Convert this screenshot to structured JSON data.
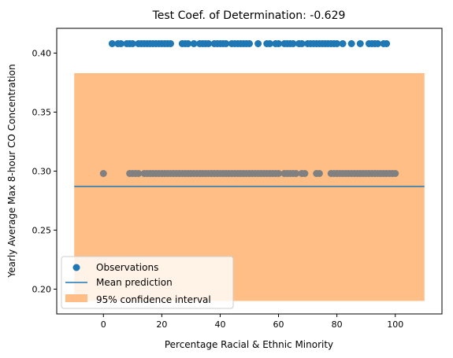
{
  "chart_data": {
    "type": "scatter",
    "title": "Test Coef. of Determination: -0.629",
    "xlabel": "Percentage Racial & Ethnic Minority",
    "ylabel": "Yearly Average Max 8-hour CO Concentration",
    "xlim": [
      -16,
      116
    ],
    "ylim": [
      0.179,
      0.421
    ],
    "xticks": [
      0,
      20,
      40,
      60,
      80,
      100
    ],
    "xtick_labels": [
      "0",
      "20",
      "40",
      "60",
      "80",
      "100"
    ],
    "yticks": [
      0.2,
      0.25,
      0.3,
      0.35,
      0.4
    ],
    "ytick_labels": [
      "0.20",
      "0.25",
      "0.30",
      "0.35",
      "0.40"
    ],
    "grid": false,
    "legend_position": "lower-left",
    "series": [
      {
        "name": "Observations",
        "kind": "scatter",
        "color": "#1f77b4",
        "points": [
          [
            3,
            0.408
          ],
          [
            5,
            0.408
          ],
          [
            6,
            0.408
          ],
          [
            8,
            0.408
          ],
          [
            9,
            0.408
          ],
          [
            10,
            0.408
          ],
          [
            12,
            0.408
          ],
          [
            13,
            0.408
          ],
          [
            14,
            0.408
          ],
          [
            15,
            0.408
          ],
          [
            16,
            0.408
          ],
          [
            17,
            0.408
          ],
          [
            18,
            0.408
          ],
          [
            19,
            0.408
          ],
          [
            20,
            0.408
          ],
          [
            21,
            0.408
          ],
          [
            22,
            0.408
          ],
          [
            23,
            0.408
          ],
          [
            27,
            0.408
          ],
          [
            28,
            0.408
          ],
          [
            29,
            0.408
          ],
          [
            31,
            0.408
          ],
          [
            33,
            0.408
          ],
          [
            34,
            0.408
          ],
          [
            35,
            0.408
          ],
          [
            36,
            0.408
          ],
          [
            38,
            0.408
          ],
          [
            39,
            0.408
          ],
          [
            40,
            0.408
          ],
          [
            41,
            0.408
          ],
          [
            42,
            0.408
          ],
          [
            44,
            0.408
          ],
          [
            45,
            0.408
          ],
          [
            46,
            0.408
          ],
          [
            47,
            0.408
          ],
          [
            48,
            0.408
          ],
          [
            49,
            0.408
          ],
          [
            50,
            0.408
          ],
          [
            53,
            0.408
          ],
          [
            56,
            0.408
          ],
          [
            57,
            0.408
          ],
          [
            59,
            0.408
          ],
          [
            60,
            0.408
          ],
          [
            62,
            0.408
          ],
          [
            63,
            0.408
          ],
          [
            64,
            0.408
          ],
          [
            65,
            0.408
          ],
          [
            67,
            0.408
          ],
          [
            68,
            0.408
          ],
          [
            70,
            0.408
          ],
          [
            71,
            0.408
          ],
          [
            72,
            0.408
          ],
          [
            73,
            0.408
          ],
          [
            74,
            0.408
          ],
          [
            75,
            0.408
          ],
          [
            76,
            0.408
          ],
          [
            77,
            0.408
          ],
          [
            78,
            0.408
          ],
          [
            79,
            0.408
          ],
          [
            80,
            0.408
          ],
          [
            82,
            0.408
          ],
          [
            85,
            0.408
          ],
          [
            88,
            0.408
          ],
          [
            91,
            0.408
          ],
          [
            92,
            0.408
          ],
          [
            93,
            0.408
          ],
          [
            94,
            0.408
          ],
          [
            96,
            0.408
          ],
          [
            97,
            0.408
          ],
          [
            0,
            0.298
          ],
          [
            9,
            0.298
          ],
          [
            10,
            0.298
          ],
          [
            11,
            0.298
          ],
          [
            12,
            0.298
          ],
          [
            14,
            0.298
          ],
          [
            15,
            0.298
          ],
          [
            16,
            0.298
          ],
          [
            17,
            0.298
          ],
          [
            18,
            0.298
          ],
          [
            19,
            0.298
          ],
          [
            20,
            0.298
          ],
          [
            21,
            0.298
          ],
          [
            22,
            0.298
          ],
          [
            23,
            0.298
          ],
          [
            24,
            0.298
          ],
          [
            25,
            0.298
          ],
          [
            26,
            0.298
          ],
          [
            27,
            0.298
          ],
          [
            28,
            0.298
          ],
          [
            29,
            0.298
          ],
          [
            30,
            0.298
          ],
          [
            31,
            0.298
          ],
          [
            32,
            0.298
          ],
          [
            33,
            0.298
          ],
          [
            34,
            0.298
          ],
          [
            35,
            0.298
          ],
          [
            36,
            0.298
          ],
          [
            37,
            0.298
          ],
          [
            38,
            0.298
          ],
          [
            39,
            0.298
          ],
          [
            40,
            0.298
          ],
          [
            41,
            0.298
          ],
          [
            42,
            0.298
          ],
          [
            43,
            0.298
          ],
          [
            44,
            0.298
          ],
          [
            45,
            0.298
          ],
          [
            46,
            0.298
          ],
          [
            47,
            0.298
          ],
          [
            48,
            0.298
          ],
          [
            49,
            0.298
          ],
          [
            50,
            0.298
          ],
          [
            51,
            0.298
          ],
          [
            52,
            0.298
          ],
          [
            53,
            0.298
          ],
          [
            54,
            0.298
          ],
          [
            55,
            0.298
          ],
          [
            56,
            0.298
          ],
          [
            57,
            0.298
          ],
          [
            58,
            0.298
          ],
          [
            59,
            0.298
          ],
          [
            60,
            0.298
          ],
          [
            62,
            0.298
          ],
          [
            63,
            0.298
          ],
          [
            64,
            0.298
          ],
          [
            65,
            0.298
          ],
          [
            66,
            0.298
          ],
          [
            68,
            0.298
          ],
          [
            69,
            0.298
          ],
          [
            73,
            0.298
          ],
          [
            74,
            0.298
          ],
          [
            78,
            0.298
          ],
          [
            79,
            0.298
          ],
          [
            80,
            0.298
          ],
          [
            81,
            0.298
          ],
          [
            82,
            0.298
          ],
          [
            83,
            0.298
          ],
          [
            84,
            0.298
          ],
          [
            85,
            0.298
          ],
          [
            86,
            0.298
          ],
          [
            87,
            0.298
          ],
          [
            88,
            0.298
          ],
          [
            89,
            0.298
          ],
          [
            90,
            0.298
          ],
          [
            91,
            0.298
          ],
          [
            92,
            0.298
          ],
          [
            93,
            0.298
          ],
          [
            94,
            0.298
          ],
          [
            95,
            0.298
          ],
          [
            96,
            0.298
          ],
          [
            97,
            0.298
          ],
          [
            98,
            0.298
          ],
          [
            99,
            0.298
          ],
          [
            100,
            0.298
          ]
        ]
      },
      {
        "name": "Mean prediction",
        "kind": "line",
        "color": "#1f77b4",
        "x": [
          -10,
          110
        ],
        "y": [
          0.287,
          0.287
        ]
      },
      {
        "name": "95% confidence interval",
        "kind": "band",
        "color": "#ffbe86",
        "x": [
          -10,
          110
        ],
        "lower": 0.19,
        "upper": 0.383
      }
    ],
    "overlap_color": "#808080"
  }
}
